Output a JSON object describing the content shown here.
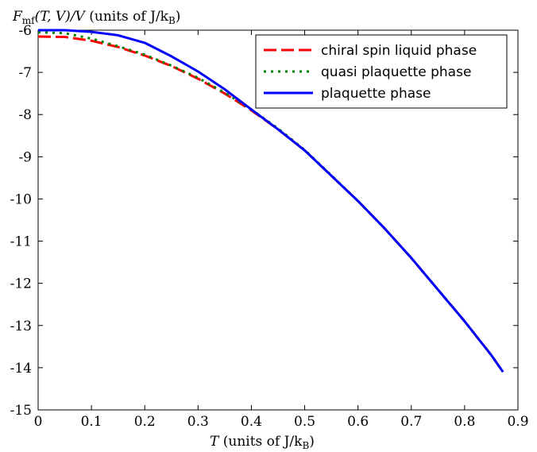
{
  "chart_data": {
    "type": "line",
    "ylabel_main": "F",
    "ylabel_sub": "mf",
    "ylabel_rest": "(T, V)/V",
    "ylabel_units": "(units of J/k",
    "ylabel_units_sub": "B",
    "ylabel_units_close": ")",
    "xlabel_main": "T",
    "xlabel_units": "(units of J/k",
    "xlabel_units_sub": "B",
    "xlabel_units_close": ")",
    "xlim": [
      0,
      0.9
    ],
    "ylim": [
      -15,
      -6
    ],
    "xticks": [
      "0",
      "0.1",
      "0.2",
      "0.3",
      "0.4",
      "0.5",
      "0.6",
      "0.7",
      "0.8",
      "0.9"
    ],
    "yticks": [
      "-6",
      "-7",
      "-8",
      "-9",
      "-10",
      "-11",
      "-12",
      "-13",
      "-14",
      "-15"
    ],
    "legend_position": "top-right",
    "series": [
      {
        "name": "chiral spin liquid phase",
        "color": "#ff0000",
        "style": "dashed",
        "x": [
          0,
          0.05,
          0.1,
          0.15,
          0.2,
          0.25,
          0.3,
          0.35,
          0.4,
          0.45,
          0.5,
          0.55,
          0.6,
          0.65,
          0.7,
          0.75,
          0.8,
          0.85,
          0.872
        ],
        "y": [
          -6.15,
          -6.16,
          -6.25,
          -6.4,
          -6.6,
          -6.85,
          -7.15,
          -7.5,
          -7.9,
          -8.35,
          -8.85,
          -9.45,
          -10.05,
          -10.7,
          -11.4,
          -12.15,
          -12.9,
          -13.7,
          -14.1
        ]
      },
      {
        "name": "quasi plaquette phase",
        "color": "#008000",
        "style": "dotted",
        "x": [
          0,
          0.05,
          0.1,
          0.15,
          0.2,
          0.25,
          0.3,
          0.35,
          0.4,
          0.45,
          0.5,
          0.55,
          0.6,
          0.65,
          0.7,
          0.75,
          0.8,
          0.85,
          0.872
        ],
        "y": [
          -6.05,
          -6.07,
          -6.2,
          -6.38,
          -6.58,
          -6.84,
          -7.13,
          -7.48,
          -7.88,
          -8.33,
          -8.84,
          -9.44,
          -10.05,
          -10.7,
          -11.4,
          -12.15,
          -12.9,
          -13.7,
          -14.1
        ]
      },
      {
        "name": "plaquette phase",
        "color": "#0000ff",
        "style": "solid",
        "x": [
          0,
          0.05,
          0.1,
          0.15,
          0.2,
          0.25,
          0.3,
          0.35,
          0.4,
          0.45,
          0.5,
          0.55,
          0.6,
          0.65,
          0.7,
          0.75,
          0.8,
          0.85,
          0.872
        ],
        "y": [
          -6.0,
          -6.0,
          -6.04,
          -6.12,
          -6.3,
          -6.62,
          -6.98,
          -7.4,
          -7.88,
          -8.35,
          -8.85,
          -9.45,
          -10.05,
          -10.7,
          -11.4,
          -12.15,
          -12.9,
          -13.7,
          -14.1
        ]
      }
    ]
  }
}
